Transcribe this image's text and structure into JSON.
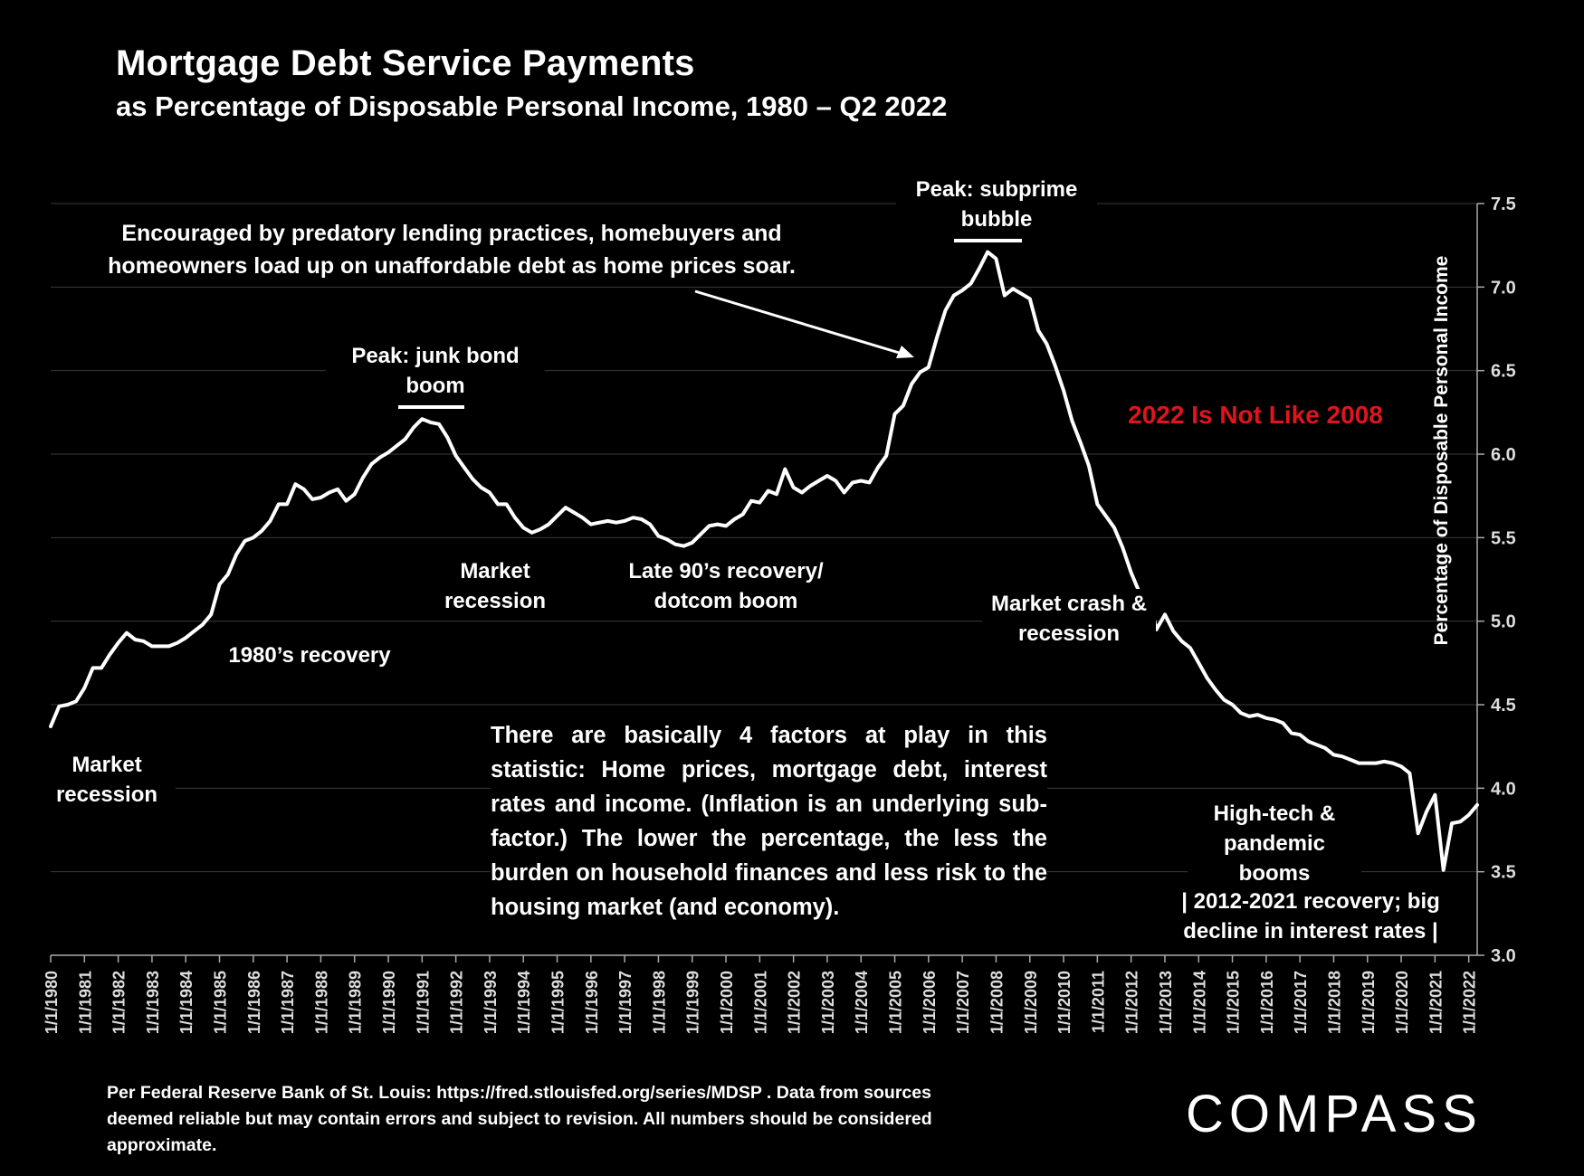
{
  "title": "Mortgage Debt Service Payments",
  "subtitle": "as Percentage of Disposable Personal Income, 1980 – Q2 2022",
  "annotations": {
    "predatory": "Encouraged by predatory lending practices, homebuyers and homeowners load up on unaffordable debt as home prices soar.",
    "subprime_peak": "Peak: subprime bubble",
    "junk_peak": "Peak: junk bond boom",
    "not_like_2008": "2022 Is Not Like 2008",
    "recession_1980": "Market recession",
    "recovery_1980s": "1980’s recovery",
    "recession_1990s": "Market recession",
    "late_90s": "Late 90’s recovery/ dotcom boom",
    "crash": "Market crash & recession",
    "hightech": "High-tech & pandemic booms",
    "recovery_2012": "| 2012-2021 recovery; big decline in interest rates |"
  },
  "factors_text": "There are basically 4 factors at play in this statistic: Home prices, mortgage debt, interest rates and income. (Inflation is an underlying sub-factor.) The lower the percentage, the less the burden on household finances and less risk to the housing market (and economy).",
  "source": "Per Federal Reserve Bank of St. Louis: https://fred.stlouisfed.org/series/MDSP . Data from sources deemed reliable but may contain errors and subject to revision. All numbers should be considered approximate.",
  "logo": "COMPASS",
  "colors": {
    "background": "#000000",
    "line": "#ffffff",
    "highlight": "#e0141e",
    "grid": "#3a3a3a"
  },
  "chart_data": {
    "type": "line",
    "ylabel": "Percentage of Disposable Personal Income",
    "ylim": [
      3.0,
      7.5
    ],
    "yticks": [
      "3.0",
      "3.5",
      "4.0",
      "4.5",
      "5.0",
      "5.5",
      "6.0",
      "6.5",
      "7.0",
      "7.5"
    ],
    "grid": true,
    "y_axis_side": "right",
    "x_tick_labels": [
      "1/1/1980",
      "1/1/1981",
      "1/1/1982",
      "1/1/1983",
      "1/1/1984",
      "1/1/1985",
      "1/1/1986",
      "1/1/1987",
      "1/1/1988",
      "1/1/1989",
      "1/1/1990",
      "1/1/1991",
      "1/1/1992",
      "1/1/1993",
      "1/1/1994",
      "1/1/1995",
      "1/1/1996",
      "1/1/1997",
      "1/1/1998",
      "1/1/1999",
      "1/1/2000",
      "1/1/2001",
      "1/1/2002",
      "1/1/2003",
      "1/1/2004",
      "1/1/2005",
      "1/1/2006",
      "1/1/2007",
      "1/1/2008",
      "1/1/2009",
      "1/1/2010",
      "1/1/2011",
      "1/1/2012",
      "1/1/2013",
      "1/1/2014",
      "1/1/2015",
      "1/1/2016",
      "1/1/2017",
      "1/1/2018",
      "1/1/2019",
      "1/1/2020",
      "1/1/2021",
      "1/1/2022"
    ],
    "series": [
      {
        "x": [
          1980.0,
          1980.25,
          1980.5,
          1980.75,
          1981.0,
          1981.25,
          1981.5,
          1981.75,
          1982.0,
          1982.25,
          1982.5,
          1982.75,
          1983.0,
          1983.25,
          1983.5,
          1983.75,
          1984.0,
          1984.25,
          1984.5,
          1984.75,
          1985.0,
          1985.25,
          1985.5,
          1985.75,
          1986.0,
          1986.25,
          1986.5,
          1986.75,
          1987.0,
          1987.25,
          1987.5,
          1987.75,
          1988.0,
          1988.25,
          1988.5,
          1988.75,
          1989.0,
          1989.25,
          1989.5,
          1989.75,
          1990.0,
          1990.25,
          1990.5,
          1990.75,
          1991.0,
          1991.25,
          1991.5,
          1991.75,
          1992.0,
          1992.25,
          1992.5,
          1992.75,
          1993.0,
          1993.25,
          1993.5,
          1993.75,
          1994.0,
          1994.25,
          1994.5,
          1994.75,
          1995.0,
          1995.25,
          1995.5,
          1995.75,
          1996.0,
          1996.25,
          1996.5,
          1996.75,
          1997.0,
          1997.25,
          1997.5,
          1997.75,
          1998.0,
          1998.25,
          1998.5,
          1998.75,
          1999.0,
          1999.25,
          1999.5,
          1999.75,
          2000.0,
          2000.25,
          2000.5,
          2000.75,
          2001.0,
          2001.25,
          2001.5,
          2001.75,
          2002.0,
          2002.25,
          2002.5,
          2002.75,
          2003.0,
          2003.25,
          2003.5,
          2003.75,
          2004.0,
          2004.25,
          2004.5,
          2004.75,
          2005.0,
          2005.25,
          2005.5,
          2005.75,
          2006.0,
          2006.25,
          2006.5,
          2006.75,
          2007.0,
          2007.25,
          2007.5,
          2007.75,
          2008.0,
          2008.25,
          2008.5,
          2008.75,
          2009.0,
          2009.25,
          2009.5,
          2009.75,
          2010.0,
          2010.25,
          2010.5,
          2010.75,
          2011.0,
          2011.25,
          2011.5,
          2011.75,
          2012.0,
          2012.25,
          2012.5,
          2012.75,
          2013.0,
          2013.25,
          2013.5,
          2013.75,
          2014.0,
          2014.25,
          2014.5,
          2014.75,
          2015.0,
          2015.25,
          2015.5,
          2015.75,
          2016.0,
          2016.25,
          2016.5,
          2016.75,
          2017.0,
          2017.25,
          2017.5,
          2017.75,
          2018.0,
          2018.25,
          2018.5,
          2018.75,
          2019.0,
          2019.25,
          2019.5,
          2019.75,
          2020.0,
          2020.25,
          2020.5,
          2020.75,
          2021.0,
          2021.25,
          2021.5,
          2021.75,
          2022.0,
          2022.25
        ],
        "values": [
          4.37,
          4.49,
          4.5,
          4.52,
          4.6,
          4.72,
          4.72,
          4.8,
          4.87,
          4.93,
          4.89,
          4.88,
          4.85,
          4.85,
          4.85,
          4.87,
          4.9,
          4.94,
          4.98,
          5.04,
          5.22,
          5.28,
          5.4,
          5.48,
          5.5,
          5.54,
          5.6,
          5.7,
          5.7,
          5.82,
          5.79,
          5.73,
          5.74,
          5.77,
          5.79,
          5.72,
          5.76,
          5.86,
          5.94,
          5.98,
          6.01,
          6.05,
          6.09,
          6.16,
          6.21,
          6.19,
          6.18,
          6.1,
          5.99,
          5.92,
          5.85,
          5.8,
          5.77,
          5.7,
          5.7,
          5.62,
          5.56,
          5.53,
          5.55,
          5.58,
          5.63,
          5.68,
          5.65,
          5.62,
          5.58,
          5.59,
          5.6,
          5.59,
          5.6,
          5.62,
          5.61,
          5.58,
          5.51,
          5.49,
          5.46,
          5.45,
          5.47,
          5.52,
          5.57,
          5.58,
          5.57,
          5.61,
          5.64,
          5.72,
          5.71,
          5.78,
          5.76,
          5.91,
          5.8,
          5.77,
          5.81,
          5.84,
          5.87,
          5.84,
          5.77,
          5.83,
          5.84,
          5.83,
          5.92,
          5.99,
          6.24,
          6.29,
          6.42,
          6.49,
          6.52,
          6.7,
          6.86,
          6.95,
          6.98,
          7.02,
          7.11,
          7.21,
          7.17,
          6.95,
          6.99,
          6.96,
          6.93,
          6.74,
          6.66,
          6.53,
          6.38,
          6.2,
          6.07,
          5.93,
          5.7,
          5.63,
          5.56,
          5.44,
          5.29,
          5.17,
          5.16,
          4.95,
          5.04,
          4.94,
          4.88,
          4.84,
          4.75,
          4.66,
          4.59,
          4.53,
          4.5,
          4.45,
          4.43,
          4.44,
          4.42,
          4.41,
          4.39,
          4.33,
          4.32,
          4.28,
          4.26,
          4.24,
          4.2,
          4.19,
          4.17,
          4.15,
          4.15,
          4.15,
          4.16,
          4.15,
          4.13,
          4.09,
          3.73,
          3.86,
          3.96,
          3.51,
          3.79,
          3.8,
          3.84,
          3.9
        ]
      }
    ]
  }
}
